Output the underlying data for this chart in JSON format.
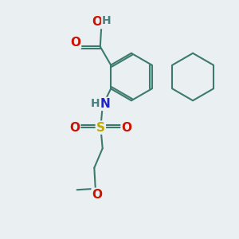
{
  "bg": "#eaeff2",
  "rc": "#3d7a6e",
  "bw": 1.5,
  "ac": {
    "O": "#cc1100",
    "N": "#2222cc",
    "S": "#bbaa00",
    "H": "#4a8080",
    "C": "#3d7a6e"
  },
  "fs": 10.5
}
